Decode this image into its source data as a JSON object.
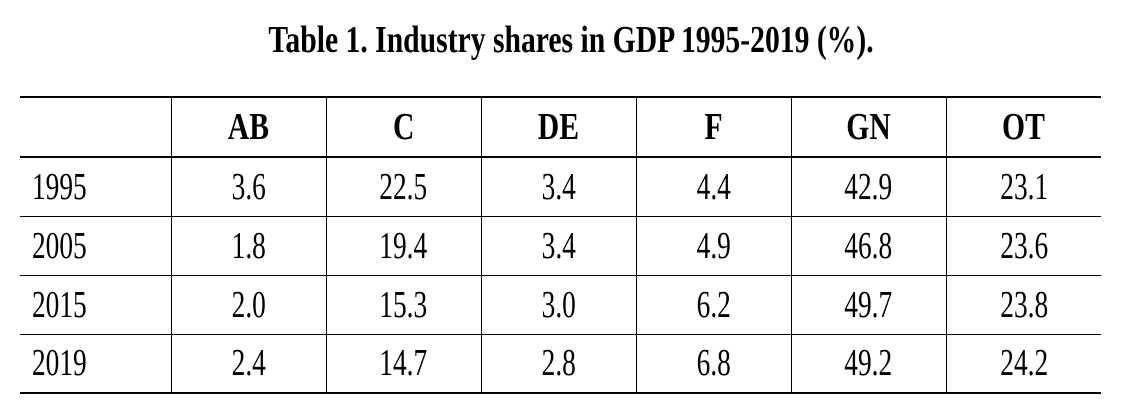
{
  "title": "Table 1. Industry shares in GDP 1995-2019 (%).",
  "table": {
    "header": [
      "",
      "AB",
      "C",
      "DE",
      "F",
      "GN",
      "OT"
    ],
    "rows": [
      {
        "year": "1995",
        "values": [
          "3.6",
          "22.5",
          "3.4",
          "4.4",
          "42.9",
          "23.1"
        ]
      },
      {
        "year": "2005",
        "values": [
          "1.8",
          "19.4",
          "3.4",
          "4.9",
          "46.8",
          "23.6"
        ]
      },
      {
        "year": "2015",
        "values": [
          "2.0",
          "15.3",
          "3.0",
          "6.2",
          "49.7",
          "23.8"
        ]
      },
      {
        "year": "2019",
        "values": [
          "2.4",
          "14.7",
          "2.8",
          "6.8",
          "49.2",
          "24.2"
        ]
      }
    ]
  }
}
